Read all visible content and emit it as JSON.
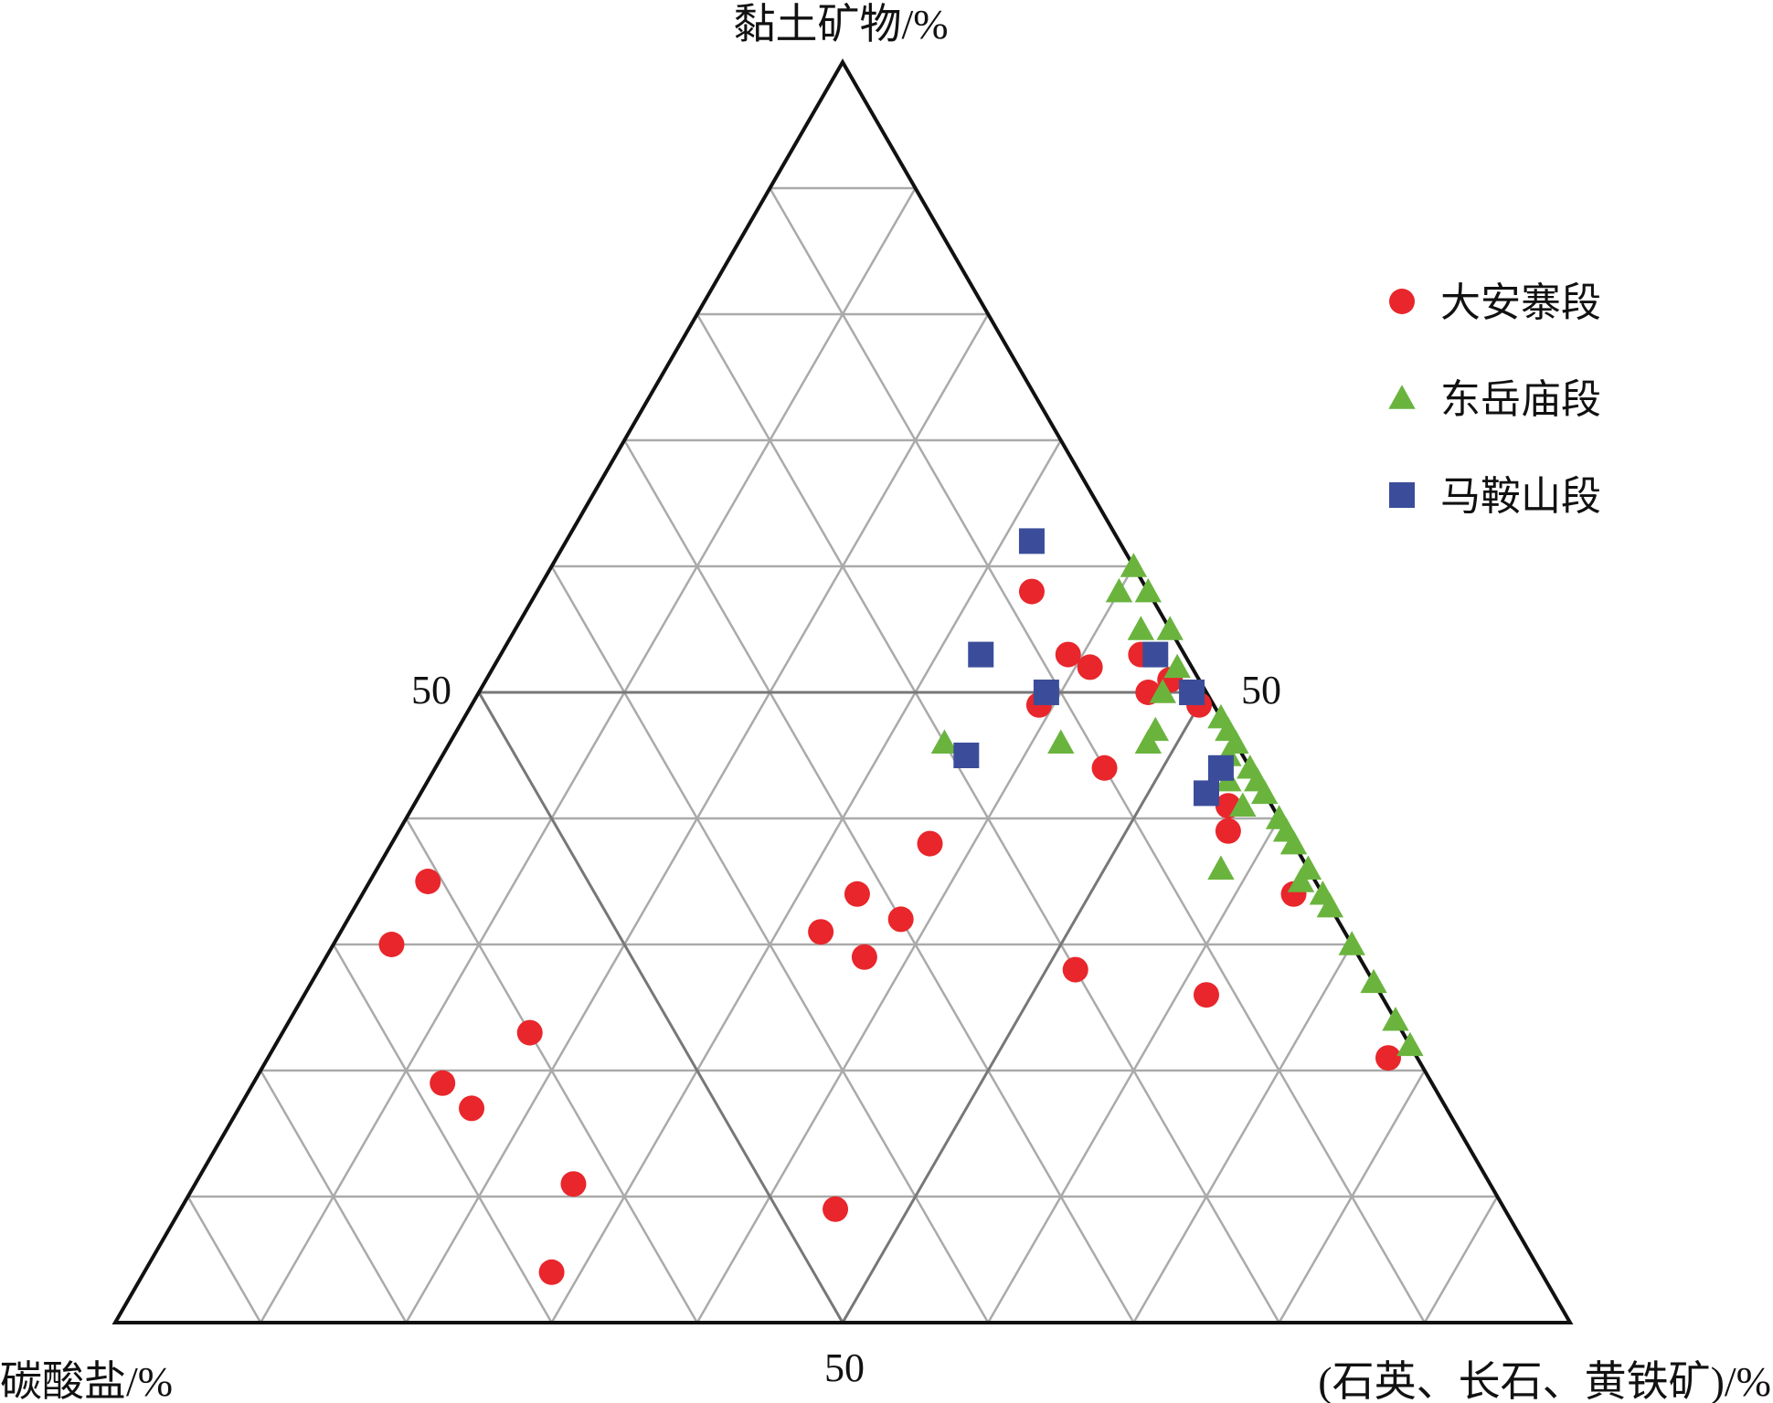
{
  "chart_data": {
    "type": "ternary-scatter",
    "axes": {
      "top": "黏土矿物/%",
      "left": "碳酸盐/%",
      "right": "(石英、长石、黄铁矿)/%"
    },
    "tick_labels": {
      "left_edge": "50",
      "right_edge": "50",
      "bottom_edge": "50"
    },
    "grid": true,
    "grid_step": 10,
    "legend_position": "top-right",
    "series": [
      {
        "name": "大安寨段",
        "marker": "circle",
        "color": "#e8262b",
        "points": [
          {
            "clay": 58,
            "carb": 8,
            "qfp": 34
          },
          {
            "clay": 53,
            "carb": 8,
            "qfp": 39
          },
          {
            "clay": 52,
            "carb": 7,
            "qfp": 41
          },
          {
            "clay": 49,
            "carb": 12,
            "qfp": 39
          },
          {
            "clay": 50,
            "carb": 4,
            "qfp": 46
          },
          {
            "clay": 53,
            "carb": 3,
            "qfp": 44
          },
          {
            "clay": 51,
            "carb": 2,
            "qfp": 47
          },
          {
            "clay": 49,
            "carb": 1,
            "qfp": 50
          },
          {
            "clay": 44,
            "carb": 10,
            "qfp": 46
          },
          {
            "clay": 41,
            "carb": 3,
            "qfp": 56
          },
          {
            "clay": 39,
            "carb": 4,
            "qfp": 57
          },
          {
            "clay": 34,
            "carb": 2,
            "qfp": 64
          },
          {
            "clay": 21,
            "carb": 2,
            "qfp": 77
          },
          {
            "clay": 26,
            "carb": 12,
            "qfp": 62
          },
          {
            "clay": 32,
            "carb": 30,
            "qfp": 38
          },
          {
            "clay": 34,
            "carb": 32,
            "qfp": 34
          },
          {
            "clay": 29,
            "carb": 34,
            "qfp": 37
          },
          {
            "clay": 35,
            "carb": 61,
            "qfp": 4
          },
          {
            "clay": 30,
            "carb": 66,
            "qfp": 4
          },
          {
            "clay": 23,
            "carb": 60,
            "qfp": 17
          },
          {
            "clay": 19,
            "carb": 68,
            "qfp": 13
          },
          {
            "clay": 17,
            "carb": 67,
            "qfp": 16
          },
          {
            "clay": 11,
            "carb": 63,
            "qfp": 26
          },
          {
            "clay": 9,
            "carb": 46,
            "qfp": 45
          },
          {
            "clay": 4,
            "carb": 68,
            "qfp": 28
          },
          {
            "clay": 28,
            "carb": 20,
            "qfp": 52
          },
          {
            "clay": 38,
            "carb": 25,
            "qfp": 37
          },
          {
            "clay": 31,
            "carb": 36,
            "qfp": 33
          }
        ]
      },
      {
        "name": "东岳庙段",
        "marker": "triangle",
        "color": "#6ab43e",
        "points": [
          {
            "clay": 60,
            "carb": 0,
            "qfp": 40
          },
          {
            "clay": 58,
            "carb": 2,
            "qfp": 40
          },
          {
            "clay": 58,
            "carb": 0,
            "qfp": 42
          },
          {
            "clay": 55,
            "carb": 2,
            "qfp": 43
          },
          {
            "clay": 55,
            "carb": 0,
            "qfp": 45
          },
          {
            "clay": 52,
            "carb": 1,
            "qfp": 47
          },
          {
            "clay": 50,
            "carb": 3,
            "qfp": 47
          },
          {
            "clay": 48,
            "carb": 0,
            "qfp": 52
          },
          {
            "clay": 47,
            "carb": 0,
            "qfp": 53
          },
          {
            "clay": 46,
            "carb": 0,
            "qfp": 54
          },
          {
            "clay": 45,
            "carb": 1,
            "qfp": 54
          },
          {
            "clay": 44,
            "carb": 0,
            "qfp": 56
          },
          {
            "clay": 43,
            "carb": 0,
            "qfp": 57
          },
          {
            "clay": 42,
            "carb": 0,
            "qfp": 58
          },
          {
            "clay": 41,
            "carb": 2,
            "qfp": 57
          },
          {
            "clay": 40,
            "carb": 0,
            "qfp": 60
          },
          {
            "clay": 39,
            "carb": 0,
            "qfp": 61
          },
          {
            "clay": 38,
            "carb": 0,
            "qfp": 62
          },
          {
            "clay": 36,
            "carb": 0,
            "qfp": 64
          },
          {
            "clay": 35,
            "carb": 1,
            "qfp": 64
          },
          {
            "clay": 34,
            "carb": 0,
            "qfp": 66
          },
          {
            "clay": 33,
            "carb": 0,
            "qfp": 67
          },
          {
            "clay": 30,
            "carb": 0,
            "qfp": 70
          },
          {
            "clay": 27,
            "carb": 0,
            "qfp": 73
          },
          {
            "clay": 24,
            "carb": 0,
            "qfp": 76
          },
          {
            "clay": 22,
            "carb": 0,
            "qfp": 78
          },
          {
            "clay": 46,
            "carb": 6,
            "qfp": 48
          },
          {
            "clay": 43,
            "carb": 2,
            "qfp": 55
          },
          {
            "clay": 47,
            "carb": 5,
            "qfp": 48
          },
          {
            "clay": 36,
            "carb": 6,
            "qfp": 58
          },
          {
            "clay": 46,
            "carb": 20,
            "qfp": 34
          },
          {
            "clay": 46,
            "carb": 12,
            "qfp": 42
          }
        ]
      },
      {
        "name": "马鞍山段",
        "marker": "square",
        "color": "#3b4d9a",
        "points": [
          {
            "clay": 62,
            "carb": 6,
            "qfp": 32
          },
          {
            "clay": 53,
            "carb": 14,
            "qfp": 33
          },
          {
            "clay": 50,
            "carb": 11,
            "qfp": 39
          },
          {
            "clay": 45,
            "carb": 19,
            "qfp": 36
          },
          {
            "clay": 53,
            "carb": 2,
            "qfp": 45
          },
          {
            "clay": 50,
            "carb": 1,
            "qfp": 49
          },
          {
            "clay": 44,
            "carb": 2,
            "qfp": 54
          },
          {
            "clay": 42,
            "carb": 4,
            "qfp": 54
          }
        ]
      }
    ]
  }
}
